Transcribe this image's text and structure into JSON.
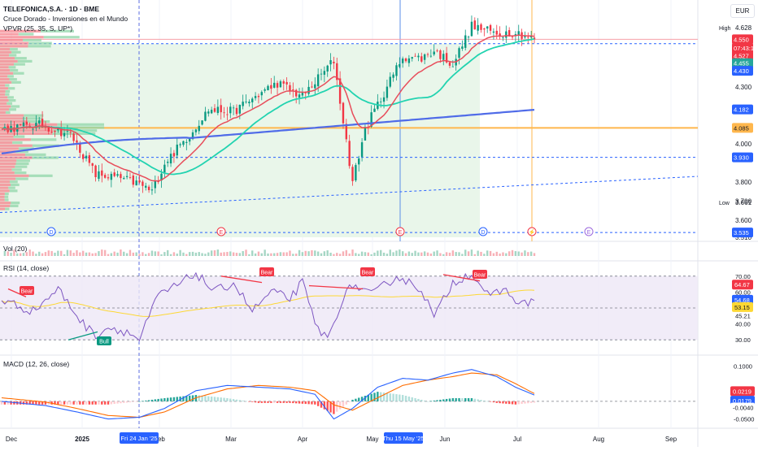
{
  "header": {
    "symbol": "TELEFONICA,S.A. · 1D · BME",
    "indicator1": "Cruce Dorado - Inversiones en el Mundo",
    "indicator2": "VPVR (25, 35, S, UP*)",
    "currency": "EUR"
  },
  "price_axis": {
    "high_label": "High",
    "high_value": "4.628",
    "low_label": "Low",
    "low_value": "3.661",
    "ticks": [
      "4.500",
      "4.300",
      "4.000",
      "3.800",
      "3.700",
      "3.600",
      "3.510"
    ],
    "tags": [
      {
        "text": "4.550",
        "bg": "#f23645",
        "fg": "#ffffff",
        "value": 4.55
      },
      {
        "text": "07:43:13",
        "bg": "#f23645",
        "fg": "#ffffff",
        "value": 4.505
      },
      {
        "text": "4.527",
        "bg": "#f23645",
        "fg": "#ffffff",
        "value": 4.465
      },
      {
        "text": "4.455",
        "bg": "#26a69a",
        "fg": "#ffffff",
        "value": 4.425
      },
      {
        "text": "4.430",
        "bg": "#2962ff",
        "fg": "#ffffff",
        "value": 4.385
      },
      {
        "text": "4.182",
        "bg": "#2962ff",
        "fg": "#ffffff",
        "value": 4.182
      },
      {
        "text": "4.085",
        "bg": "#ffb74d",
        "fg": "#131722",
        "value": 4.085
      },
      {
        "text": "3.930",
        "bg": "#2962ff",
        "fg": "#ffffff",
        "value": 3.93
      },
      {
        "text": "3.535",
        "bg": "#2962ff",
        "fg": "#ffffff",
        "value": 3.535
      }
    ]
  },
  "time_axis": {
    "labels": [
      "Dec",
      "2025",
      "Feb",
      "Mar",
      "Apr",
      "May",
      "Jun",
      "Jul",
      "Aug",
      "Sep"
    ],
    "markers": [
      "Fri 24 Jan '25",
      "Thu 15 May '25"
    ]
  },
  "event_icons": [
    "D",
    "E",
    "E",
    "D",
    "⚡",
    "E"
  ],
  "volume_panel": {
    "title": "Vol (20)"
  },
  "rsi_panel": {
    "title": "RSI (14, close)",
    "ticks": [
      "70.00",
      "60.00",
      "45.21",
      "40.00",
      "30.00"
    ],
    "tags": [
      {
        "text": "64.67",
        "bg": "#f23645",
        "fg": "#ffffff"
      },
      {
        "text": "54.68",
        "bg": "#2962ff",
        "fg": "#ffffff"
      },
      {
        "text": "53.15",
        "bg": "#fdd835",
        "fg": "#131722"
      }
    ],
    "signals": [
      "Bear",
      "Bull",
      "Bear",
      "Bear",
      "Bear"
    ]
  },
  "macd_panel": {
    "title": "MACD (12, 26, close)",
    "ticks": [
      "0.1000",
      "-0.0500"
    ],
    "tags": [
      {
        "text": "0.0219",
        "bg": "#f23645",
        "fg": "#ffffff"
      },
      {
        "text": "0.0179",
        "bg": "#2962ff",
        "fg": "#ffffff"
      },
      {
        "text": "-0.0040",
        "bg": "#ffffff",
        "fg": "#131722"
      }
    ]
  },
  "colors": {
    "up": "#089981",
    "down": "#f23645",
    "ema_fast": "#e84d5b",
    "ema_mid": "#22d3b0",
    "ema_slow": "#4f6be8",
    "orange_line": "#ffb74d",
    "rsi": "#7e57c2",
    "rsi_ma": "#fdd835",
    "macd": "#2962ff",
    "signal": "#ff6d00"
  },
  "chart_data": [
    {
      "type": "candlestick",
      "title": "TELEFONICA,S.A. · 1D · BME",
      "ylim": [
        3.51,
        4.65
      ],
      "x_range": [
        "Nov 2024",
        "Sep 2025"
      ],
      "high": 4.628,
      "low": 3.661,
      "last": 4.55,
      "series": [
        {
          "name": "Cruce Dorado - Inversiones en el Mundo",
          "x": [
            "Dec",
            "2025",
            "Feb",
            "Mar",
            "Apr",
            "May",
            "Jun",
            "Jul"
          ],
          "values": [
            4.08,
            3.84,
            4.04,
            4.07,
            4.02,
            4.24,
            4.46,
            4.55
          ]
        }
      ],
      "levels": [
        4.527,
        4.085,
        3.93,
        3.535
      ]
    },
    {
      "type": "line",
      "title": "RSI (14, close)",
      "ylim": [
        25,
        75
      ],
      "series": [
        {
          "name": "RSI (14, close)",
          "x": [
            "Dec",
            "2025",
            "Feb",
            "Mar",
            "Apr",
            "May",
            "Jun",
            "Jul"
          ],
          "values": [
            52,
            37,
            62,
            68,
            33,
            63,
            71,
            54.68
          ]
        }
      ]
    },
    {
      "type": "line",
      "title": "MACD (12, 26, close)",
      "ylim": [
        -0.06,
        0.11
      ],
      "series": [
        {
          "name": "MACD",
          "x": [
            "Dec",
            "2025",
            "Feb",
            "Mar",
            "Apr",
            "May",
            "Jun",
            "Jul"
          ],
          "values": [
            -0.01,
            -0.045,
            0.03,
            0.055,
            -0.05,
            0.03,
            0.09,
            0.0179
          ]
        },
        {
          "name": "Signal",
          "x": [
            "Dec",
            "2025",
            "Feb",
            "Mar",
            "Apr",
            "May",
            "Jun",
            "Jul"
          ],
          "values": [
            -0.005,
            -0.035,
            0.015,
            0.045,
            -0.02,
            0.01,
            0.08,
            0.0219
          ]
        },
        {
          "name": "Histogram",
          "x": [
            "Dec",
            "2025",
            "Feb",
            "Mar",
            "Apr",
            "May",
            "Jun",
            "Jul"
          ],
          "values": [
            -0.005,
            -0.01,
            0.015,
            0.01,
            -0.03,
            0.02,
            0.01,
            -0.004
          ]
        }
      ]
    }
  ]
}
